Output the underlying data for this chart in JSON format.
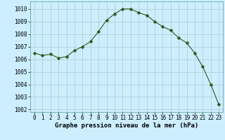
{
  "x": [
    0,
    1,
    2,
    3,
    4,
    5,
    6,
    7,
    8,
    9,
    10,
    11,
    12,
    13,
    14,
    15,
    16,
    17,
    18,
    19,
    20,
    21,
    22,
    23
  ],
  "y": [
    1006.5,
    1006.3,
    1006.4,
    1006.1,
    1006.2,
    1006.7,
    1007.0,
    1007.4,
    1008.2,
    1009.1,
    1009.6,
    1010.0,
    1010.0,
    1009.7,
    1009.5,
    1009.0,
    1008.6,
    1008.3,
    1007.7,
    1007.3,
    1006.5,
    1005.4,
    1004.0,
    1002.4
  ],
  "line_color": "#2d5a1b",
  "marker": "D",
  "marker_size": 2.5,
  "bg_color": "#cceeff",
  "grid_color": "#aacccc",
  "xlabel": "Graphe pression niveau de la mer (hPa)",
  "xlabel_fontsize": 6.5,
  "tick_fontsize": 5.5,
  "ylim": [
    1001.8,
    1010.6
  ],
  "xlim": [
    -0.5,
    23.5
  ],
  "yticks": [
    1002,
    1003,
    1004,
    1005,
    1006,
    1007,
    1008,
    1009,
    1010
  ],
  "xticks": [
    0,
    1,
    2,
    3,
    4,
    5,
    6,
    7,
    8,
    9,
    10,
    11,
    12,
    13,
    14,
    15,
    16,
    17,
    18,
    19,
    20,
    21,
    22,
    23
  ]
}
